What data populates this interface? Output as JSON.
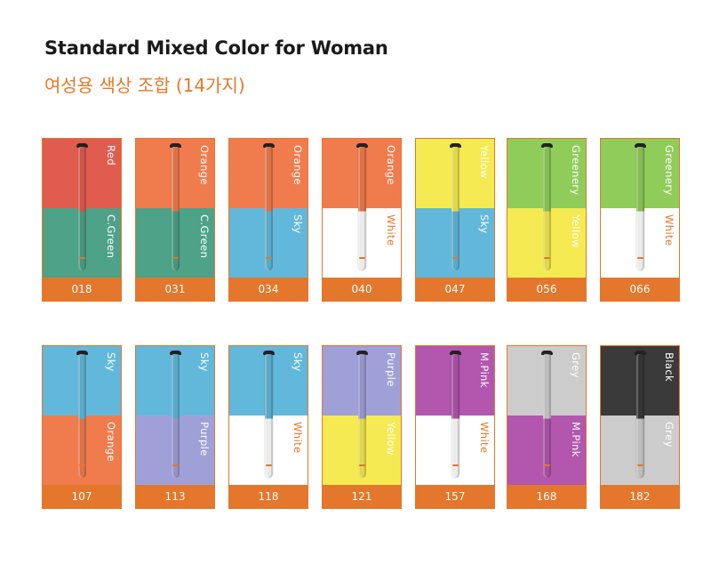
{
  "header": {
    "title": "Standard Mixed Color for Woman",
    "subtitle": "여성용 색상 조합 (14가지)"
  },
  "palette": {
    "Red": "#e05c4e",
    "C.Green": "#4da287",
    "Orange": "#f07c4e",
    "Sky": "#62b8da",
    "White": "#ffffff",
    "Yellow": "#f5ea52",
    "Greenery": "#8fcc5a",
    "Purple": "#a0a0d8",
    "M.Pink": "#b256ae",
    "Grey": "#cccccc",
    "Black": "#3a3a3a",
    "accent": "#e4772b"
  },
  "items": [
    {
      "code": "018",
      "top": "Red",
      "bottom": "C.Green"
    },
    {
      "code": "031",
      "top": "Orange",
      "bottom": "C.Green"
    },
    {
      "code": "034",
      "top": "Orange",
      "bottom": "Sky"
    },
    {
      "code": "040",
      "top": "Orange",
      "bottom": "White"
    },
    {
      "code": "047",
      "top": "Yellow",
      "bottom": "Sky"
    },
    {
      "code": "056",
      "top": "Greenery",
      "bottom": "Yellow"
    },
    {
      "code": "066",
      "top": "Greenery",
      "bottom": "White"
    },
    {
      "code": "107",
      "top": "Sky",
      "bottom": "Orange"
    },
    {
      "code": "113",
      "top": "Sky",
      "bottom": "Purple"
    },
    {
      "code": "118",
      "top": "Sky",
      "bottom": "White"
    },
    {
      "code": "121",
      "top": "Purple",
      "bottom": "Yellow"
    },
    {
      "code": "157",
      "top": "M.Pink",
      "bottom": "White"
    },
    {
      "code": "168",
      "top": "Grey",
      "bottom": "M.Pink"
    },
    {
      "code": "182",
      "top": "Black",
      "bottom": "Grey"
    }
  ]
}
